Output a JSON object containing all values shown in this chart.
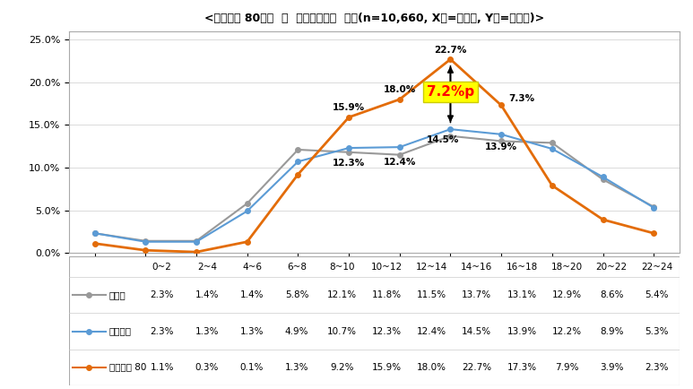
{
  "title": "<불쿘지수 80초과  시  사고발생비율  비교(n=10,660, X축=시간대, Y축=구성비)>",
  "x_labels": [
    "0~2",
    "2~4",
    "4~6",
    "6~8",
    "8~10",
    "10~12",
    "12~14",
    "14~16",
    "16~18",
    "18~20",
    "20~22",
    "22~24"
  ],
  "series": [
    {
      "name": "월평균",
      "values": [
        2.3,
        1.4,
        1.4,
        5.8,
        12.1,
        11.8,
        11.5,
        13.7,
        13.1,
        12.9,
        8.6,
        5.4
      ],
      "color": "#999999",
      "marker": "o",
      "linewidth": 1.5
    },
    {
      "name": "여름평균",
      "values": [
        2.3,
        1.3,
        1.3,
        4.9,
        10.7,
        12.3,
        12.4,
        14.5,
        13.9,
        12.2,
        8.9,
        5.3
      ],
      "color": "#5B9BD5",
      "marker": "o",
      "linewidth": 1.5
    },
    {
      "name": "불쿘지수 80",
      "values": [
        1.1,
        0.3,
        0.1,
        1.3,
        9.2,
        15.9,
        18.0,
        22.7,
        17.3,
        7.9,
        3.9,
        2.3
      ],
      "color": "#E36C09",
      "marker": "o",
      "linewidth": 2.0
    }
  ],
  "ylim": [
    0,
    26
  ],
  "yticks": [
    0,
    5,
    10,
    15,
    20,
    25
  ],
  "ytick_labels": [
    "0.0%",
    "5.0%",
    "10.0%",
    "15.0%",
    "20.0%",
    "25.0%"
  ],
  "annotation_box_text": "7.2%p",
  "annotation_box_color": "#FFFF00",
  "annotation_text_color": "#FF0000",
  "table_row_labels": [
    "월평균",
    "여름평균",
    "불쿘지수 80"
  ],
  "table_colors": [
    "#999999",
    "#5B9BD5",
    "#E36C09"
  ],
  "table_data": [
    [
      "2.3%",
      "1.4%",
      "1.4%",
      "5.8%",
      "12.1%",
      "11.8%",
      "11.5%",
      "13.7%",
      "13.1%",
      "12.9%",
      "8.6%",
      "5.4%"
    ],
    [
      "2.3%",
      "1.3%",
      "1.3%",
      "4.9%",
      "10.7%",
      "12.3%",
      "12.4%",
      "14.5%",
      "13.9%",
      "12.2%",
      "8.9%",
      "5.3%"
    ],
    [
      "1.1%",
      "0.3%",
      "0.1%",
      "1.3%",
      "9.2%",
      "15.9%",
      "18.0%",
      "22.7%",
      "17.3%",
      "7.9%",
      "3.9%",
      "2.3%"
    ]
  ],
  "background_color": "#FFFFFF"
}
